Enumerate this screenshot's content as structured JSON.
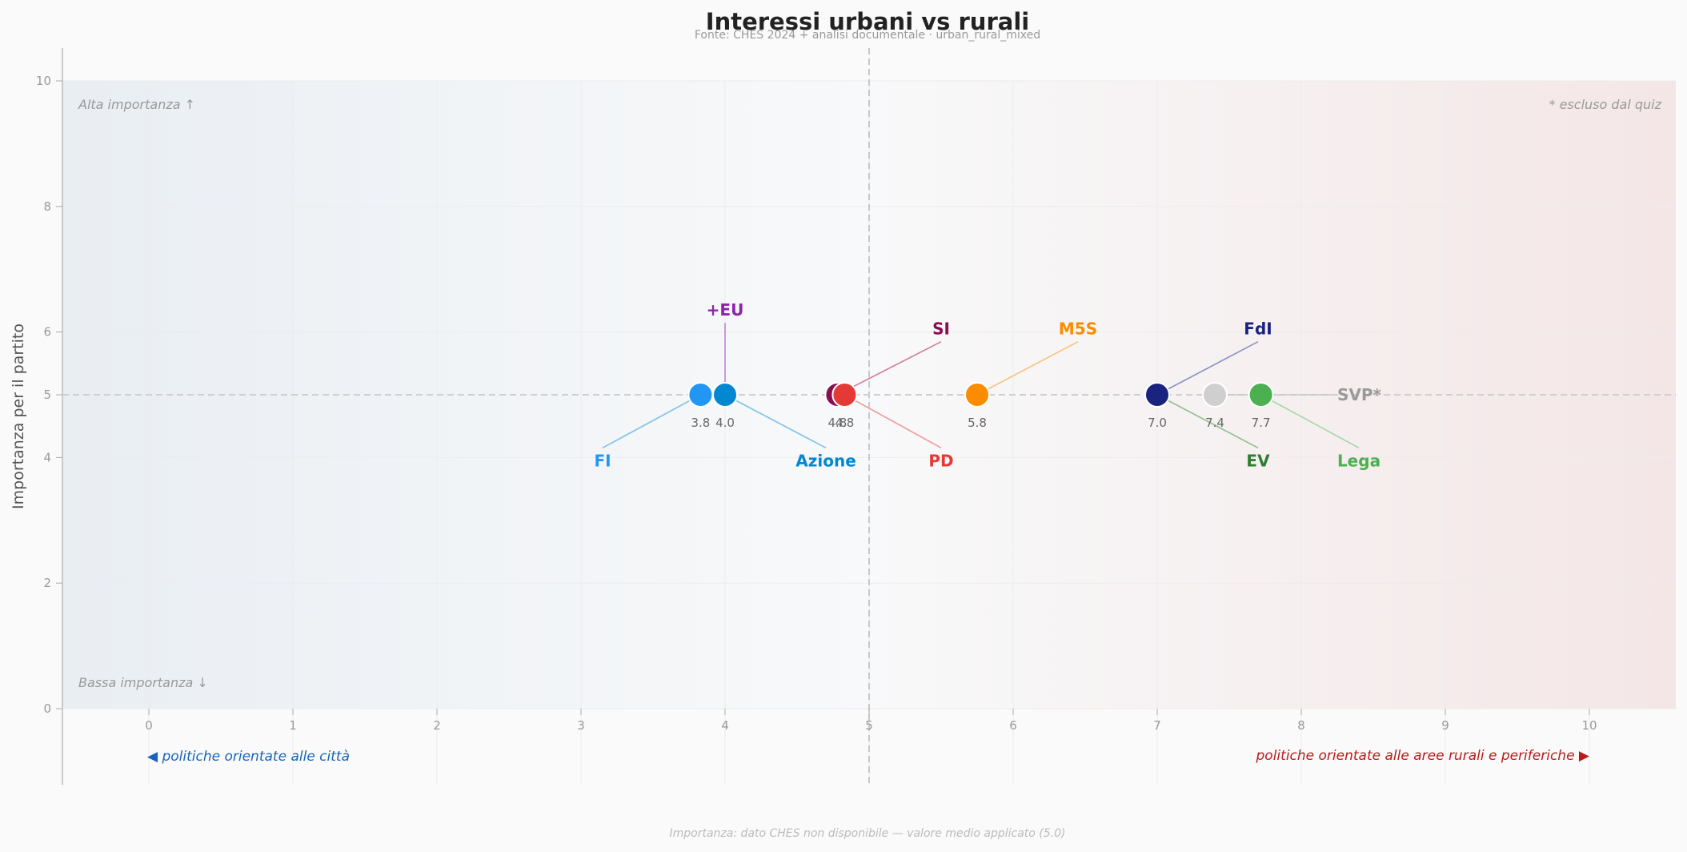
{
  "chart_data": {
    "type": "scatter",
    "title": "Interessi urbani vs rurali",
    "subtitle": "Fonte: CHES 2024 + analisi documentale  ·  urban_rural_mixed",
    "ylabel": "Importanza per il partito",
    "xlim": [
      -0.6,
      10.6
    ],
    "ylim": [
      -1.2,
      10.5
    ],
    "plot_xlim": [
      -0.6,
      10.6
    ],
    "plot_ylim": [
      0,
      10
    ],
    "x_ticks": [
      "0",
      "1",
      "2",
      "3",
      "4",
      "5",
      "6",
      "7",
      "8",
      "9",
      "10"
    ],
    "y_ticks": [
      "0",
      "2",
      "4",
      "5",
      "6",
      "8",
      "10"
    ],
    "midline_x": 5,
    "midline_y": 5,
    "corner_top_left": "Alta importanza ↑",
    "corner_bottom_left": "Bassa importanza ↓",
    "corner_top_right": "* escluso dal quiz",
    "x_left_label": "◀  politiche orientate alle città",
    "x_right_label": "politiche orientate alle aree rurali e periferiche  ▶",
    "footnote": "Importanza: dato CHES non disponibile — valore medio applicato (5.0)",
    "points": [
      {
        "name": "FI",
        "x": 3.83,
        "y": 5,
        "value_label": "3.8",
        "color": "#2196f3",
        "label_x": 3.15,
        "label_y": 3.95,
        "line_color": "#7ec0ec"
      },
      {
        "name": "Azione",
        "x": 4.0,
        "y": 5,
        "value_label": "4.0",
        "color": "#0288d1",
        "label_x": 4.7,
        "label_y": 3.95,
        "line_color": "#7ec0ec"
      },
      {
        "name": "+EU",
        "x": 4.0,
        "y": 5,
        "value_label": "",
        "color": "#0288d1",
        "label_x": 4.0,
        "label_y": 6.35,
        "line_color": "#c57fd6",
        "label_color": "#8e24aa"
      },
      {
        "name": "SI",
        "x": 4.78,
        "y": 5,
        "value_label": "4.8",
        "color": "#880e4f",
        "label_x": 5.5,
        "label_y": 6.05,
        "line_color": "#d47f9e"
      },
      {
        "name": "PD",
        "x": 4.83,
        "y": 5,
        "value_label": "4.8",
        "color": "#e53935",
        "label_x": 5.5,
        "label_y": 3.95,
        "line_color": "#ee9a98"
      },
      {
        "name": "M5S",
        "x": 5.75,
        "y": 5,
        "value_label": "5.8",
        "color": "#fb8c00",
        "label_x": 6.45,
        "label_y": 6.05,
        "line_color": "#f8c37d"
      },
      {
        "name": "FdI",
        "x": 7.0,
        "y": 5,
        "value_label": "7.0",
        "color": "#1a237e",
        "label_x": 7.7,
        "label_y": 6.05,
        "line_color": "#8e92c0",
        "label_color": "#1a237e"
      },
      {
        "name": "EV",
        "x": 7.0,
        "y": 5,
        "value_label": "7.0",
        "color": "#1a237e",
        "label_x": 7.7,
        "label_y": 3.95,
        "line_color": "#8fbf8f",
        "label_color": "#2e7d32"
      },
      {
        "name": "SVP*",
        "x": 7.4,
        "y": 5,
        "value_label": "7.4",
        "color": "#cfcfcf",
        "label_x": 8.25,
        "label_y": 5.0,
        "line_color": "#c8c8c8",
        "label_color": "#999999"
      },
      {
        "name": "Lega",
        "x": 7.72,
        "y": 5,
        "value_label": "7.7",
        "color": "#4caf50",
        "label_x": 8.4,
        "label_y": 3.95,
        "line_color": "#a5d6a5",
        "label_color": "#4caf50"
      }
    ],
    "colors": {
      "left_label": "#1565c0",
      "right_label": "#b71c1c"
    }
  }
}
